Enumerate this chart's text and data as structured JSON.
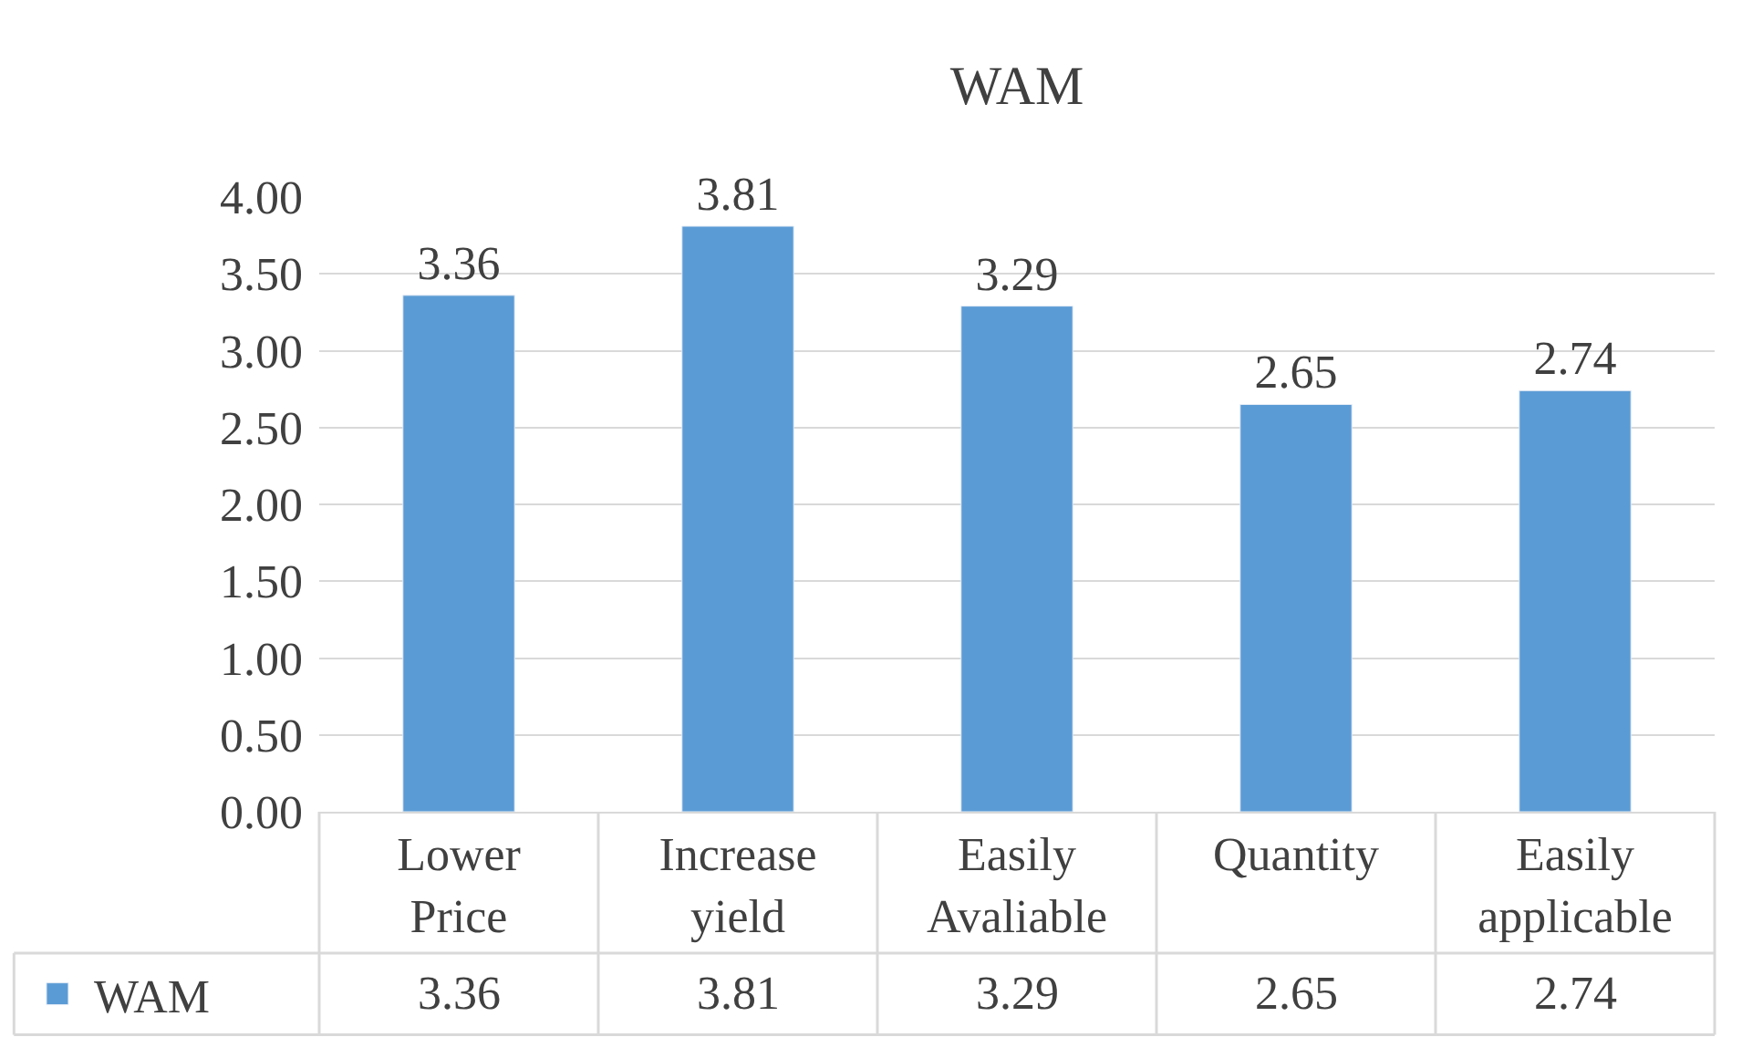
{
  "chart_data": {
    "type": "bar",
    "title": "WAM",
    "categories": [
      "Lower Price",
      "Increase yield",
      "Easily Avaliable",
      "Quantity",
      "Easily applicable"
    ],
    "series": [
      {
        "name": "WAM",
        "color": "#5b9bd5",
        "values": [
          3.36,
          3.81,
          3.29,
          2.65,
          2.74
        ]
      }
    ],
    "annotations": [
      "3.36",
      "3.81",
      "3.29",
      "2.65",
      "2.74"
    ],
    "ylim": [
      0,
      4
    ],
    "yticks": [
      {
        "value": 0,
        "label": "0.00"
      },
      {
        "value": 0.5,
        "label": "0.50"
      },
      {
        "value": 1,
        "label": "1.00"
      },
      {
        "value": 1.5,
        "label": "1.50"
      },
      {
        "value": 2,
        "label": "2.00"
      },
      {
        "value": 2.5,
        "label": "2.50"
      },
      {
        "value": 3,
        "label": "3.00"
      },
      {
        "value": 3.5,
        "label": "3.50"
      },
      {
        "value": 4,
        "label": "4.00"
      }
    ],
    "grid": "y",
    "legend": "bottom left",
    "data_labels": true
  }
}
